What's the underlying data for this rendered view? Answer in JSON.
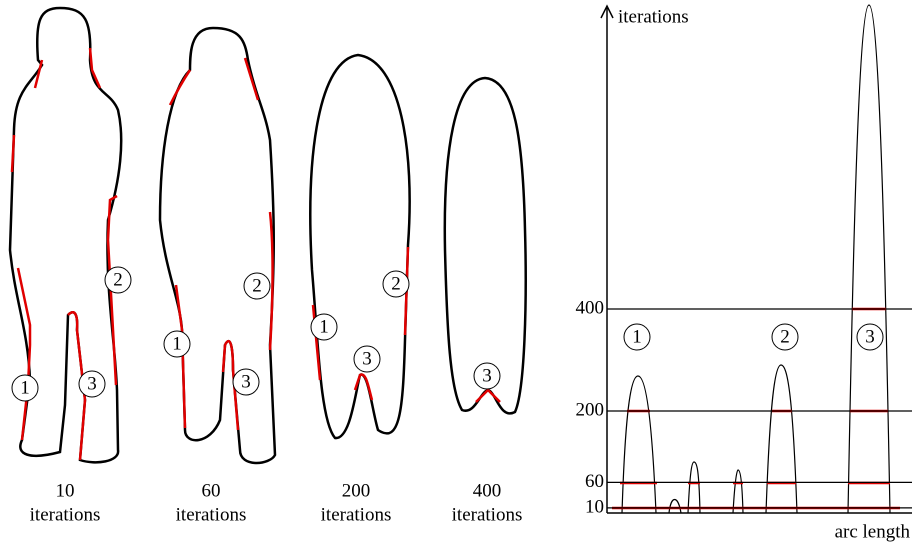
{
  "shapes": [
    {
      "count": "10",
      "unit": "iterations",
      "markers": [
        "1",
        "2",
        "3"
      ]
    },
    {
      "count": "60",
      "unit": "iterations",
      "markers": [
        "1",
        "2",
        "3"
      ]
    },
    {
      "count": "200",
      "unit": "iterations",
      "markers": [
        "1",
        "2",
        "3"
      ]
    },
    {
      "count": "400",
      "unit": "iterations",
      "markers": [
        "3"
      ]
    }
  ],
  "plot": {
    "y_label": "iterations",
    "x_label": "arc length",
    "yticks": [
      10,
      60,
      200,
      400
    ],
    "markers": [
      "1",
      "2",
      "3"
    ]
  }
}
